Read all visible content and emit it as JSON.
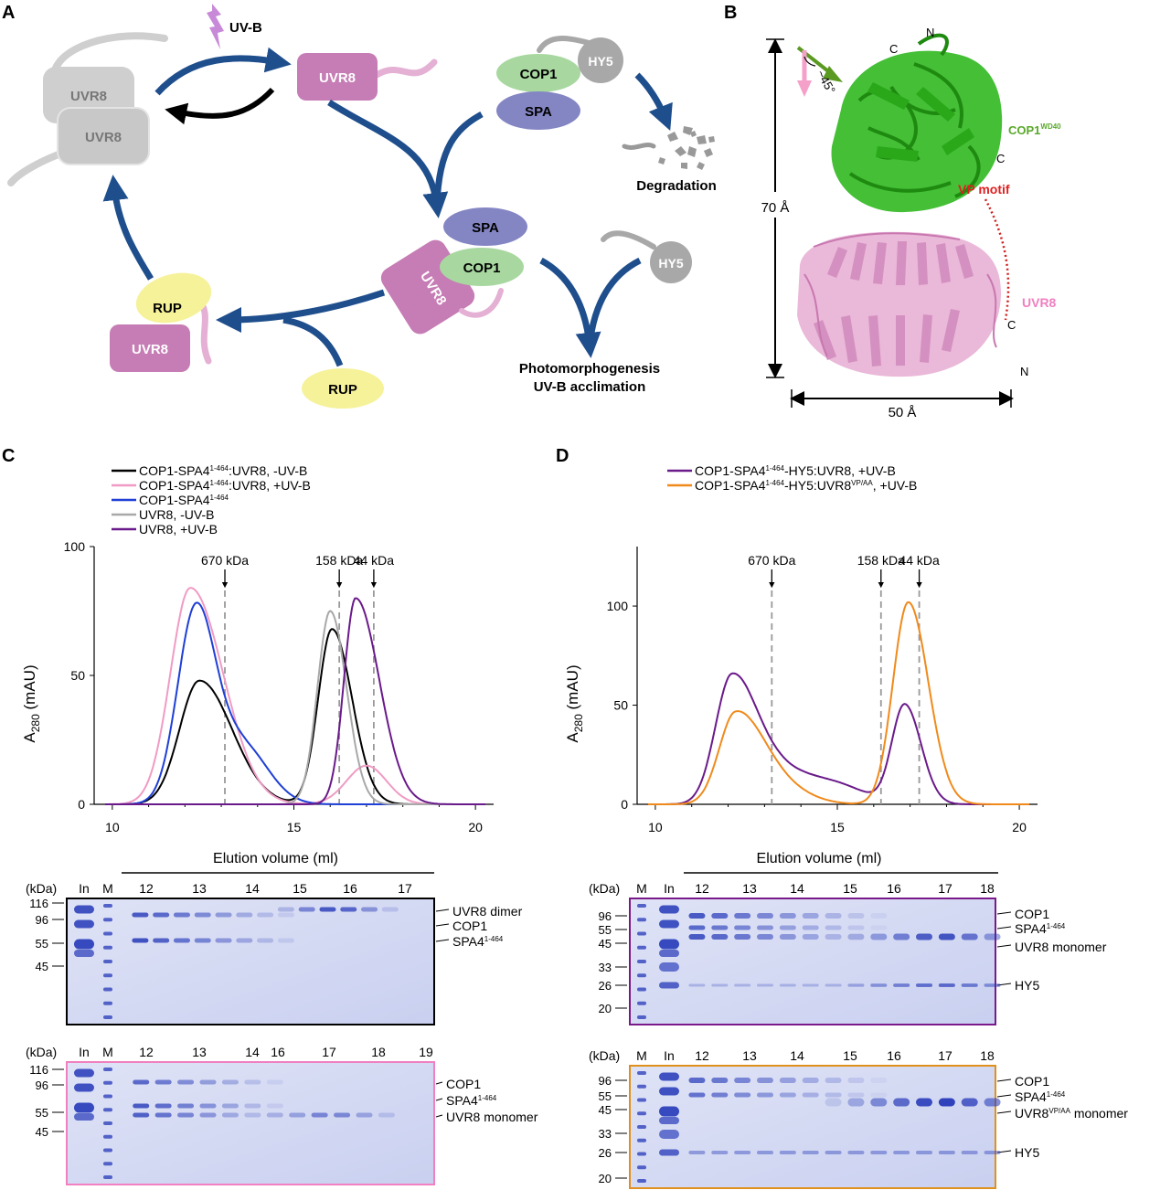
{
  "panels": {
    "A": {
      "letter": "A",
      "uvb": "UV-B",
      "uvr8": "UVR8",
      "cop1": "COP1",
      "spa": "SPA",
      "hy5": "HY5",
      "rup": "RUP",
      "degradation": "Degradation",
      "outcome_line1": "Photomorphogenesis",
      "outcome_line2": "UV-B acclimation"
    },
    "B": {
      "letter": "B",
      "c": "C",
      "n": "N",
      "angle": "~45°",
      "cop1": "COP1",
      "cop1_sup": "WD40",
      "vp": "VP motif",
      "uvr8": "UVR8",
      "height": "70 Å",
      "width": "50 Å"
    },
    "C": {
      "letter": "C"
    },
    "D": {
      "letter": "D"
    }
  },
  "chart_data": [
    {
      "panel": "C",
      "type": "line",
      "xlabel": "Elution volume (ml)",
      "ylabel_main": "A",
      "ylabel_sub": "280",
      "ylabel_unit": " (mAU)",
      "xlim": [
        9.5,
        20.5
      ],
      "ylim": [
        0,
        100
      ],
      "xticks": [
        10,
        15,
        20
      ],
      "yticks": [
        0,
        50,
        100
      ],
      "markers": [
        {
          "label": "670 kDa",
          "x": 13.1
        },
        {
          "label": "158 kDa",
          "x": 16.25
        },
        {
          "label": "44 kDa",
          "x": 17.2
        }
      ],
      "series": [
        {
          "name": "COP1-SPA4",
          "sup": "1-464",
          "suffix": ":UVR8, -UV-B",
          "color": "#000000",
          "peaks": [
            {
              "mu": 12.4,
              "h": 48,
              "sl": 0.55,
              "sr": 0.9
            },
            {
              "mu": 16.05,
              "h": 68,
              "sl": 0.38,
              "sr": 0.55
            }
          ]
        },
        {
          "name": "COP1-SPA4",
          "sup": "1-464",
          "suffix": ":UVR8, +UV-B",
          "color": "#f09bc4",
          "peaks": [
            {
              "mu": 12.15,
              "h": 84,
              "sl": 0.55,
              "sr": 0.9
            },
            {
              "mu": 17.0,
              "h": 15,
              "sl": 0.55,
              "sr": 0.55
            }
          ]
        },
        {
          "name": "COP1-SPA4",
          "sup": "1-464",
          "suffix": "",
          "color": "#1f3fd6",
          "peaks": [
            {
              "mu": 12.3,
              "h": 76,
              "sl": 0.5,
              "sr": 0.55
            },
            {
              "mu": 13.6,
              "h": 22,
              "sl": 0.6,
              "sr": 0.7
            }
          ]
        },
        {
          "name": "UVR8, -UV-B",
          "sup": "",
          "suffix": "",
          "color": "#a8a8a8",
          "peaks": [
            {
              "mu": 16.0,
              "h": 75,
              "sl": 0.35,
              "sr": 0.45
            }
          ]
        },
        {
          "name": "UVR8, +UV-B",
          "sup": "",
          "suffix": "",
          "color": "#6a1a8a",
          "peaks": [
            {
              "mu": 16.7,
              "h": 80,
              "sl": 0.32,
              "sr": 0.65
            }
          ]
        }
      ]
    },
    {
      "panel": "D",
      "type": "line",
      "xlabel": "Elution volume (ml)",
      "ylabel_main": "A",
      "ylabel_sub": "280",
      "ylabel_unit": " (mAU)",
      "xlim": [
        9.5,
        20.5
      ],
      "ylim": [
        0,
        130
      ],
      "xticks": [
        10,
        15,
        20
      ],
      "yticks": [
        0,
        50,
        100
      ],
      "markers": [
        {
          "label": "670 kDa",
          "x": 13.2
        },
        {
          "label": "158 kDa",
          "x": 16.2
        },
        {
          "label": "44 kDa",
          "x": 17.25
        }
      ],
      "series": [
        {
          "name": "COP1-SPA4",
          "sup": "1-464",
          "suffix": "-HY5:UVR8, +UV-B",
          "color": "#6a1a8a",
          "peaks": [
            {
              "mu": 12.1,
              "h": 64,
              "sl": 0.45,
              "sr": 0.7
            },
            {
              "mu": 13.5,
              "h": 14,
              "sl": 0.7,
              "sr": 0.8
            },
            {
              "mu": 15.0,
              "h": 9,
              "sl": 0.8,
              "sr": 0.8
            },
            {
              "mu": 16.85,
              "h": 50,
              "sl": 0.35,
              "sr": 0.45
            }
          ]
        },
        {
          "name": "COP1-SPA4",
          "sup": "1-464",
          "suffix": "-HY5:UVR8",
          "sup2": "VP/AA",
          "suffix2": ", +UV-B",
          "color": "#f08a1c",
          "peaks": [
            {
              "mu": 12.2,
              "h": 45,
              "sl": 0.45,
              "sr": 0.75
            },
            {
              "mu": 13.4,
              "h": 8,
              "sl": 0.7,
              "sr": 0.8
            },
            {
              "mu": 16.95,
              "h": 102,
              "sl": 0.42,
              "sr": 0.55
            }
          ]
        }
      ]
    }
  ],
  "gels": {
    "kda": "(kDa)",
    "xlabel": "Elution volume (ml)",
    "c_top": {
      "border": "#000000",
      "lanes": [
        "In",
        "M",
        "12",
        "13",
        "14",
        "15",
        "16",
        "17"
      ],
      "markers": [
        "116",
        "96",
        "55",
        "45"
      ],
      "labels": [
        {
          "text": "UVR8 dimer",
          "sup": ""
        },
        {
          "text": "COP1",
          "sup": ""
        },
        {
          "text": "SPA4",
          "sup": "1-464"
        }
      ]
    },
    "c_bottom": {
      "border": "#f080c0",
      "lanes": [
        "In",
        "M",
        "12",
        "13",
        "14",
        "16",
        "17",
        "18",
        "19"
      ],
      "markers": [
        "116",
        "96",
        "55",
        "45"
      ],
      "labels": [
        {
          "text": "COP1",
          "sup": ""
        },
        {
          "text": "SPA4",
          "sup": "1-464"
        },
        {
          "text": "UVR8 monomer",
          "sup": ""
        }
      ]
    },
    "d_top": {
      "border": "#7a1a8a",
      "lanes": [
        "M",
        "In",
        "12",
        "13",
        "14",
        "15",
        "16",
        "17",
        "18"
      ],
      "markers": [
        "96",
        "55",
        "45",
        "33",
        "26",
        "20"
      ],
      "labels": [
        {
          "text": "COP1",
          "sup": ""
        },
        {
          "text": "SPA4",
          "sup": "1-464"
        },
        {
          "text": "UVR8 monomer",
          "sup": ""
        },
        {
          "text": "HY5",
          "sup": ""
        }
      ]
    },
    "d_bottom": {
      "border": "#e0901c",
      "lanes": [
        "M",
        "In",
        "12",
        "13",
        "14",
        "15",
        "16",
        "17",
        "18"
      ],
      "markers": [
        "96",
        "55",
        "45",
        "33",
        "26",
        "20"
      ],
      "labels": [
        {
          "text": "COP1",
          "sup": ""
        },
        {
          "text": "SPA4",
          "sup": "1-464"
        },
        {
          "text": "UVR8",
          "sup": "VP/AA",
          "tail": " monomer"
        },
        {
          "text": "HY5",
          "sup": ""
        }
      ]
    }
  }
}
